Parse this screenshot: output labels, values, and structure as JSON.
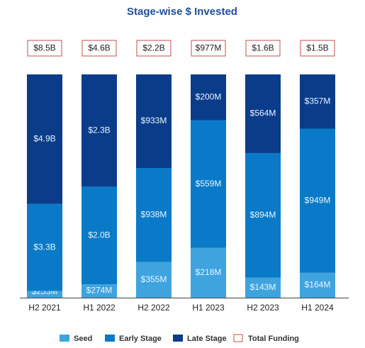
{
  "chart_data": {
    "type": "bar",
    "stacked": "percent",
    "title": "Stage-wise $ Invested",
    "categories": [
      "H2 2021",
      "H1 2022",
      "H2 2022",
      "H1 2023",
      "H2 2023",
      "H1 2024"
    ],
    "series": [
      {
        "name": "Seed",
        "color": "#3fa4de",
        "values": [
          253,
          274,
          355,
          218,
          143,
          164
        ],
        "value_labels": [
          "$253M",
          "$274M",
          "$355M",
          "$218M",
          "$143M",
          "$164M"
        ]
      },
      {
        "name": "Early Stage",
        "color": "#0a7ac8",
        "values": [
          3300,
          2000,
          938,
          559,
          894,
          949
        ],
        "value_labels": [
          "$3.3B",
          "$2.0B",
          "$938M",
          "$559M",
          "$894M",
          "$949M"
        ]
      },
      {
        "name": "Late Stage",
        "color": "#0b3c8a",
        "values": [
          4900,
          2300,
          933,
          200,
          564,
          357
        ],
        "value_labels": [
          "$4.9B",
          "$2.3B",
          "$933M",
          "$200M",
          "$564M",
          "$357M"
        ]
      }
    ],
    "total_funding": {
      "name": "Total Funding",
      "color": "#c0504d",
      "values": [
        8500,
        4600,
        2200,
        977,
        1600,
        1500
      ],
      "value_labels": [
        "$8.5B",
        "$4.6B",
        "$2.2B",
        "$977M",
        "$1.6B",
        "$1.5B"
      ]
    }
  }
}
